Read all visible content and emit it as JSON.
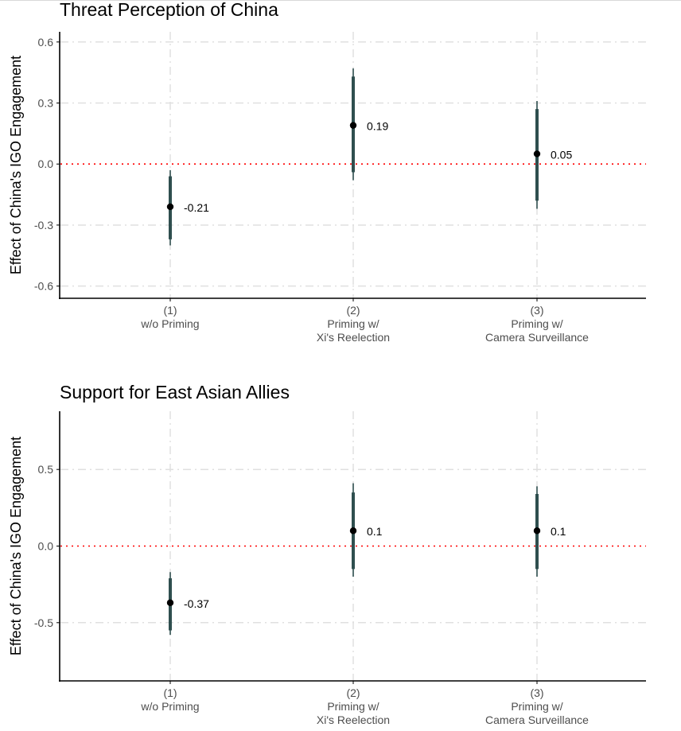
{
  "colors": {
    "estimate": "#2f4f4f",
    "point": "#000000",
    "zero_line": "#ff0000",
    "grid": "#e0e0e0",
    "axis": "#000000"
  },
  "chart_data": [
    {
      "type": "scatter",
      "subtype": "coefficient-plot",
      "title": "Threat Perception of China",
      "xlabel": "",
      "ylabel": "Effect of China's IGO Engagement",
      "categories": [
        [
          "(1)",
          "w/o Priming"
        ],
        [
          "(2)",
          "Priming w/",
          "Xi's Reelection"
        ],
        [
          "(3)",
          "Priming w/",
          "Camera Surveillance"
        ]
      ],
      "ylim": [
        -0.66,
        0.65
      ],
      "yticks": [
        -0.6,
        -0.3,
        0.0,
        0.3,
        0.6
      ],
      "ytick_labels": [
        "-0.6",
        "-0.3",
        "0.0",
        "0.3",
        "0.6"
      ],
      "reference_line": 0,
      "grid": true,
      "estimates": [
        -0.21,
        0.19,
        0.05
      ],
      "labels": [
        "-0.21",
        "0.19",
        "0.05"
      ],
      "ci95": [
        [
          -0.4,
          -0.03
        ],
        [
          -0.08,
          0.47
        ],
        [
          -0.22,
          0.31
        ]
      ],
      "ci90": [
        [
          -0.37,
          -0.06
        ],
        [
          -0.04,
          0.43
        ],
        [
          -0.18,
          0.27
        ]
      ]
    },
    {
      "type": "scatter",
      "subtype": "coefficient-plot",
      "title": "Support for East Asian Allies",
      "xlabel": "",
      "ylabel": "Effect of China's IGO Engagement",
      "categories": [
        [
          "(1)",
          "w/o Priming"
        ],
        [
          "(2)",
          "Priming w/",
          "Xi's Reelection"
        ],
        [
          "(3)",
          "Priming w/",
          "Camera Surveillance"
        ]
      ],
      "ylim": [
        -0.88,
        0.88
      ],
      "yticks": [
        -0.5,
        0.0,
        0.5
      ],
      "ytick_labels": [
        "-0.5",
        "0.0",
        "0.5"
      ],
      "reference_line": 0,
      "grid": true,
      "estimates": [
        -0.37,
        0.1,
        0.1
      ],
      "labels": [
        "-0.37",
        "0.1",
        "0.1"
      ],
      "ci95": [
        [
          -0.58,
          -0.17
        ],
        [
          -0.2,
          0.41
        ],
        [
          -0.2,
          0.39
        ]
      ],
      "ci90": [
        [
          -0.55,
          -0.21
        ],
        [
          -0.15,
          0.35
        ],
        [
          -0.15,
          0.34
        ]
      ]
    }
  ]
}
